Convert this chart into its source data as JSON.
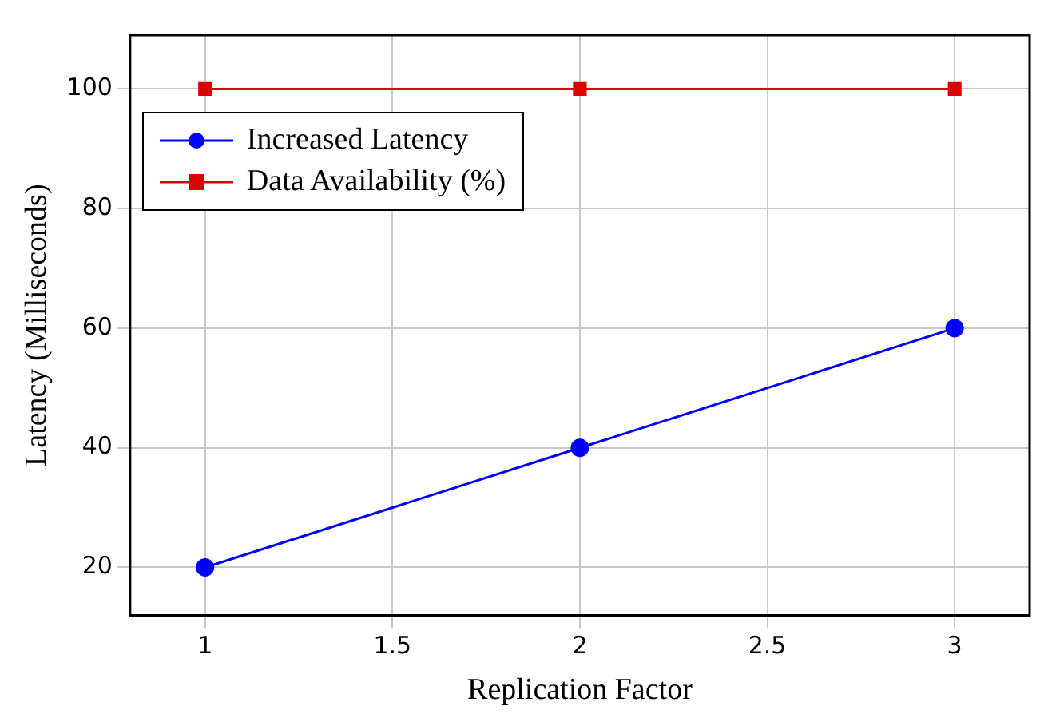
{
  "chart_data": {
    "type": "line",
    "xlabel": "Replication Factor",
    "ylabel": "Latency (Milliseconds)",
    "x": [
      1,
      2,
      3
    ],
    "series": [
      {
        "name": "Increased Latency",
        "color": "#0000ff",
        "values": [
          20,
          40,
          60
        ],
        "marker": "circle"
      },
      {
        "name": "Data Availability (%)",
        "color": "#dd0000",
        "values": [
          100,
          100,
          100
        ],
        "marker": "square"
      }
    ],
    "xlim": [
      0.8,
      3.2
    ],
    "xticks": [
      1,
      1.5,
      2,
      2.5,
      3
    ],
    "ylim": [
      12,
      109
    ],
    "yticks": [
      20,
      40,
      60,
      80,
      100
    ],
    "grid": true,
    "legend": "top left",
    "line_style": "solid"
  }
}
